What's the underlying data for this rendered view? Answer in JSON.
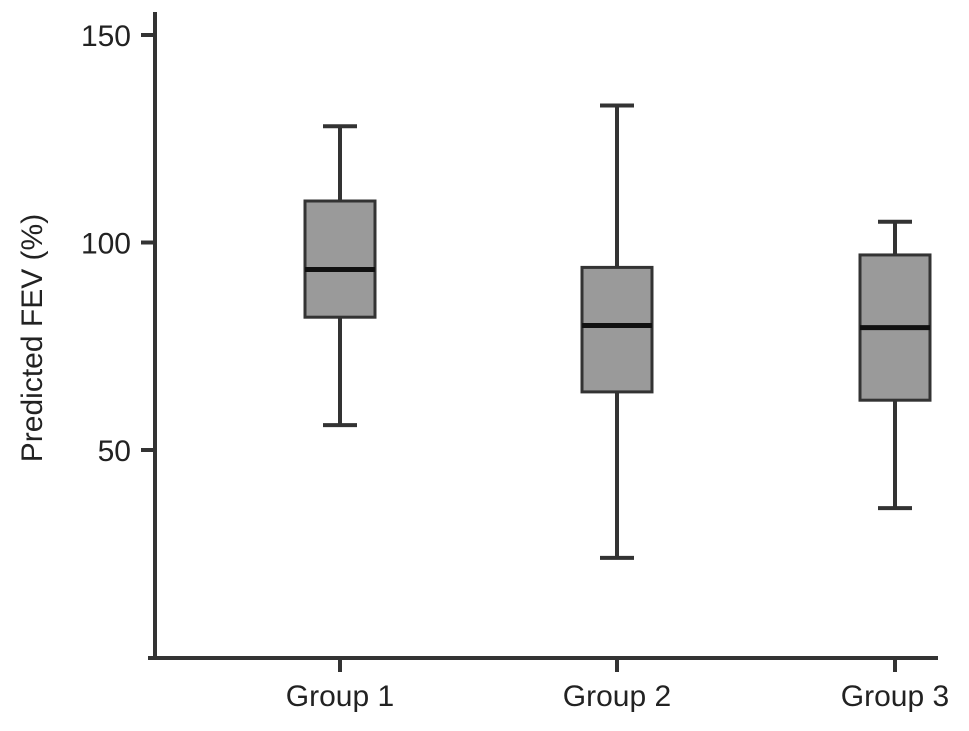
{
  "chart_data": {
    "type": "box",
    "title": "",
    "xlabel": "",
    "ylabel": "Predicted FEV (%)",
    "ylim": [
      0,
      155
    ],
    "yticks": [
      50,
      100,
      150
    ],
    "categories": [
      "Group 1",
      "Group 2",
      "Group 3"
    ],
    "boxes": [
      {
        "category": "Group 1",
        "min": 56,
        "q1": 82,
        "median": 93.5,
        "q3": 110,
        "max": 128
      },
      {
        "category": "Group 2",
        "min": 24,
        "q1": 64,
        "median": 80,
        "q3": 94,
        "max": 133
      },
      {
        "category": "Group 3",
        "min": 36,
        "q1": 62,
        "median": 79.5,
        "q3": 97,
        "max": 105
      }
    ],
    "box_color": "#9a9a9a",
    "line_color": "#333333",
    "grid": false,
    "legend": "none"
  }
}
